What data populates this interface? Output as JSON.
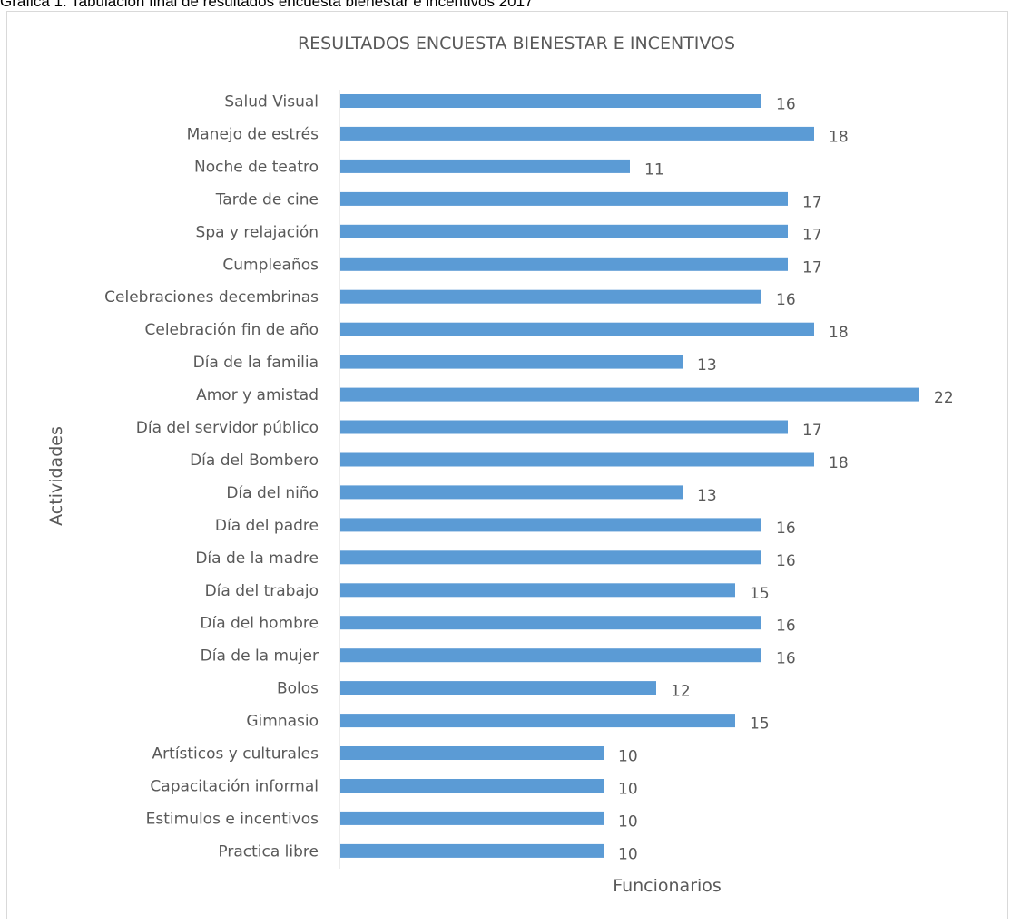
{
  "caption": "Gráfica 1. Tabulación final de resultados encuesta bienestar e incentivos 2017",
  "chart_data": {
    "type": "bar",
    "orientation": "horizontal",
    "title": "RESULTADOS ENCUESTA BIENESTAR E INCENTIVOS",
    "xlabel": "Funcionarios",
    "ylabel": "Actividades",
    "categories": [
      "Salud Visual",
      "Manejo de estrés",
      "Noche de teatro",
      "Tarde de cine",
      "Spa y relajación",
      "Cumpleaños",
      "Celebraciones decembrinas",
      "Celebración fin de año",
      "Día de la familia",
      "Amor y amistad",
      "Día del servidor público",
      "Día del Bombero",
      "Día del niño",
      "Día del padre",
      "Día de la madre",
      "Día del trabajo",
      "Día del hombre",
      "Día de la mujer",
      "Bolos",
      "Gimnasio",
      "Artísticos y culturales",
      "Capacitación informal",
      "Estimulos e incentivos",
      "Practica libre"
    ],
    "values": [
      16,
      18,
      11,
      17,
      17,
      17,
      16,
      18,
      13,
      22,
      17,
      18,
      13,
      16,
      16,
      15,
      16,
      16,
      12,
      15,
      10,
      10,
      10,
      10
    ],
    "xlim": [
      0,
      22
    ],
    "grid": false,
    "legend": false,
    "data_labels": true,
    "bar_color": "#5b9bd5"
  }
}
